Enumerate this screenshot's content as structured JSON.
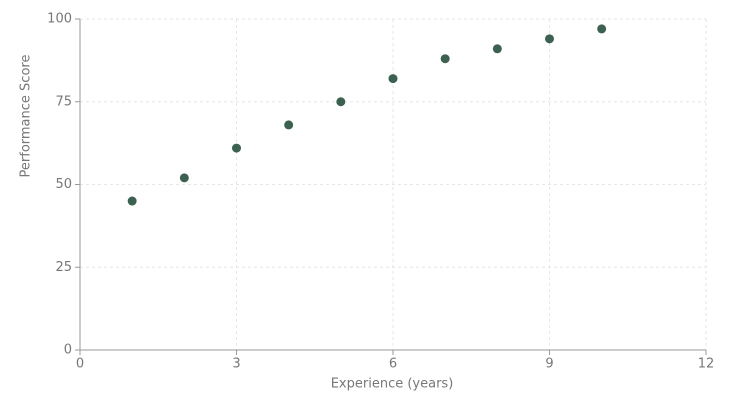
{
  "chart_data": {
    "type": "scatter",
    "x_label": "Experience (years)",
    "y_label": "Performance Score",
    "series": [
      {
        "color": "#3d6151",
        "x": [
          1,
          2,
          3,
          4,
          5,
          6,
          7,
          8,
          9,
          10
        ],
        "values": [
          45,
          52,
          61,
          68,
          75,
          82,
          88,
          91,
          94,
          97
        ]
      }
    ],
    "xlim": [
      0,
      12
    ],
    "xticks": [
      0,
      3,
      6,
      9,
      12
    ],
    "ylim": [
      0,
      100
    ],
    "yticks": [
      0,
      25,
      50,
      75,
      100
    ],
    "grid": true
  }
}
